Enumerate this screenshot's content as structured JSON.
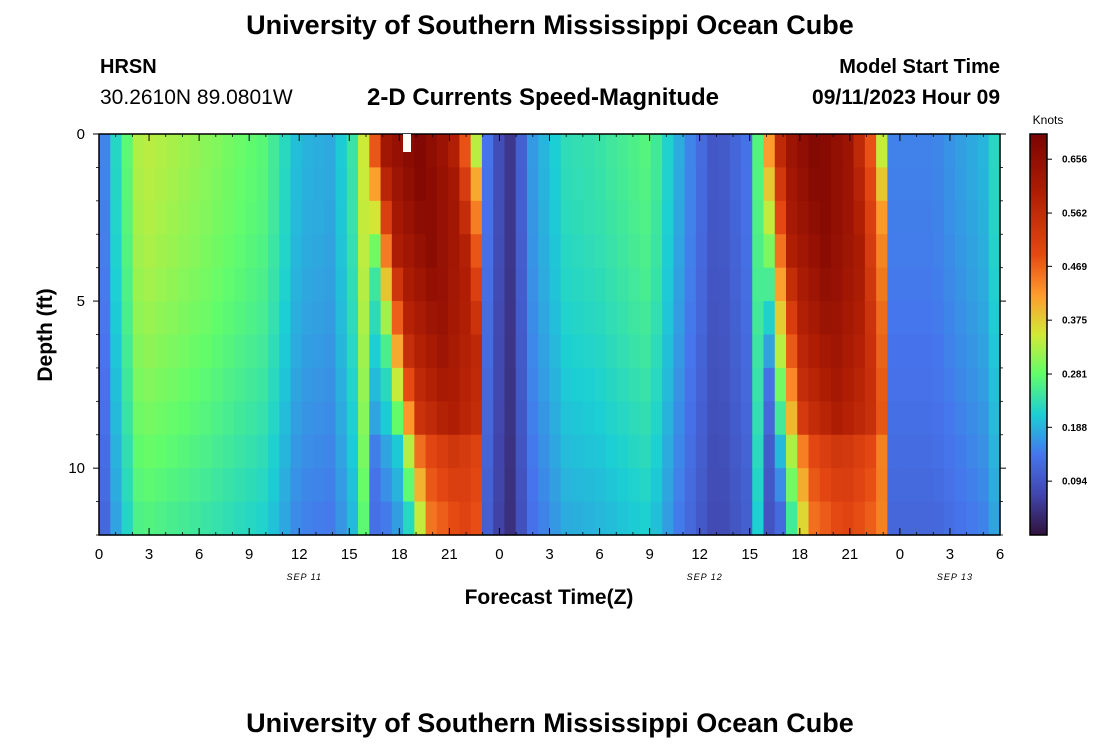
{
  "header": {
    "main_title": "University of Southern Mississippi Ocean Cube",
    "station": "HRSN",
    "coordinates": "30.2610N  89.0801W",
    "chart_title": "2-D Currents Speed-Magnitude",
    "model_start_label": "Model Start Time",
    "model_start_value": "09/11/2023 Hour 09",
    "footer_title": "University of Southern Mississippi Ocean Cube"
  },
  "chart_data": {
    "type": "heatmap",
    "title": "2-D Currents Speed-Magnitude",
    "xlabel": "Forecast Time(Z)",
    "ylabel": "Depth (ft)",
    "colorbar_label": "Knots",
    "xlim": [
      0,
      54
    ],
    "ylim": [
      0,
      12
    ],
    "x_tick_values": [
      0,
      3,
      6,
      9,
      12,
      15,
      18,
      21,
      24,
      27,
      30,
      33,
      36,
      39,
      42,
      45,
      48,
      51,
      54
    ],
    "x_tick_labels": [
      "0",
      "3",
      "6",
      "9",
      "12",
      "15",
      "18",
      "21",
      "0",
      "3",
      "6",
      "9",
      "12",
      "15",
      "18",
      "21",
      "0",
      "3",
      "6"
    ],
    "date_labels": [
      {
        "hour": 12,
        "label": "SEP 11"
      },
      {
        "hour": 36,
        "label": "SEP 12"
      },
      {
        "hour": 51,
        "label": "SEP 13"
      }
    ],
    "y_tick_values": [
      0,
      5,
      10
    ],
    "y_tick_labels": [
      "0",
      "5",
      "10"
    ],
    "colorbar_min": 0.0,
    "colorbar_max": 0.7,
    "colorbar_ticks": [
      "0.656",
      "0.562",
      "0.469",
      "0.375",
      "0.281",
      "0.188",
      "0.094"
    ],
    "surface_profile_knots": [
      {
        "hour": 0,
        "speed": 0.12
      },
      {
        "hour": 1,
        "speed": 0.22
      },
      {
        "hour": 2.5,
        "speed": 0.34
      },
      {
        "hour": 6,
        "speed": 0.31
      },
      {
        "hour": 10,
        "speed": 0.27
      },
      {
        "hour": 12,
        "speed": 0.19
      },
      {
        "hour": 14,
        "speed": 0.18
      },
      {
        "hour": 15.5,
        "speed": 0.26
      },
      {
        "hour": 17,
        "speed": 0.62
      },
      {
        "hour": 19,
        "speed": 0.69
      },
      {
        "hour": 21,
        "speed": 0.62
      },
      {
        "hour": 22.3,
        "speed": 0.4
      },
      {
        "hour": 23,
        "speed": 0.16
      },
      {
        "hour": 24.5,
        "speed": 0.04
      },
      {
        "hour": 26,
        "speed": 0.17
      },
      {
        "hour": 28,
        "speed": 0.23
      },
      {
        "hour": 30,
        "speed": 0.24
      },
      {
        "hour": 33,
        "speed": 0.27
      },
      {
        "hour": 35,
        "speed": 0.17
      },
      {
        "hour": 37,
        "speed": 0.09
      },
      {
        "hour": 39,
        "speed": 0.14
      },
      {
        "hour": 40,
        "speed": 0.4
      },
      {
        "hour": 41,
        "speed": 0.62
      },
      {
        "hour": 43,
        "speed": 0.69
      },
      {
        "hour": 45,
        "speed": 0.63
      },
      {
        "hour": 46.5,
        "speed": 0.44
      },
      {
        "hour": 47.5,
        "speed": 0.15
      },
      {
        "hour": 50,
        "speed": 0.15
      },
      {
        "hour": 53,
        "speed": 0.19
      },
      {
        "hour": 54,
        "speed": 0.24
      }
    ]
  }
}
